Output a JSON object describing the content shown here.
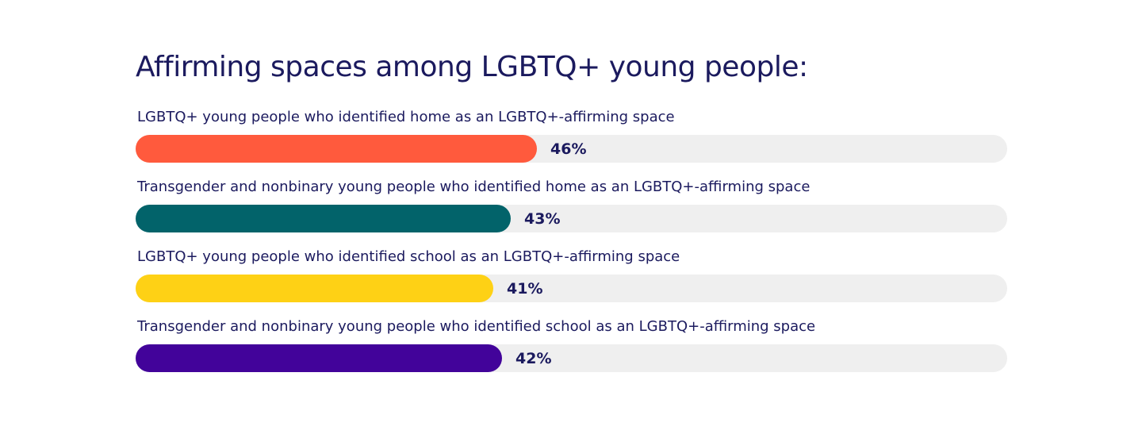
{
  "chart_data": {
    "type": "bar",
    "orientation": "horizontal",
    "title": "Affirming spaces among LGBTQ+ young people:",
    "categories": [
      "LGBTQ+ young people who identified home as an LGBTQ+-affirming space",
      "Transgender and nonbinary young people who identified home as an LGBTQ+-affirming space",
      "LGBTQ+ young people who identified school as an LGBTQ+-affirming space",
      "Transgender and nonbinary young people who identified school as an LGBTQ+-affirming space"
    ],
    "values": [
      46,
      43,
      41,
      42
    ],
    "value_labels": [
      "46%",
      "43%",
      "41%",
      "42%"
    ],
    "colors": [
      "#ff5a3d",
      "#02636a",
      "#fed115",
      "#42039a"
    ],
    "track_color": "#efefef",
    "xlim": [
      0,
      100
    ],
    "grid": false,
    "legend": "none"
  }
}
